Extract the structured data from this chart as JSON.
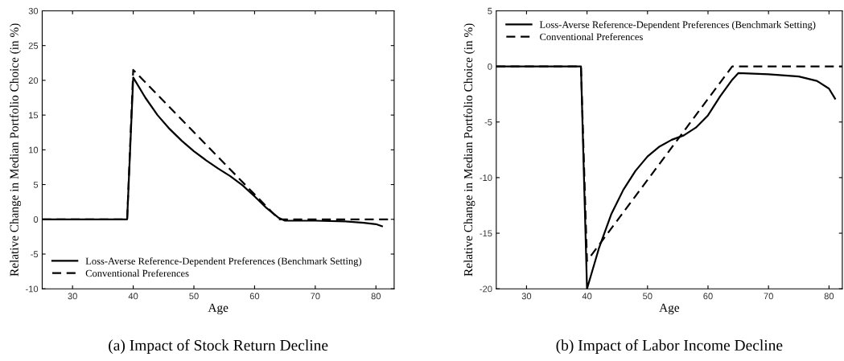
{
  "chart_data": [
    {
      "type": "line",
      "title": "(a) Impact of Stock Return Decline",
      "xlabel": "Age",
      "ylabel": "Relative Change in Median Portfolio Choice (in %)",
      "xlim": [
        25,
        83
      ],
      "xticks": [
        30,
        40,
        50,
        60,
        70,
        80
      ],
      "ylim": [
        -10,
        30
      ],
      "yticks": [
        -10,
        -5,
        0,
        5,
        10,
        15,
        20,
        25,
        30
      ],
      "legend": "bottom left",
      "grid": false,
      "series": [
        {
          "name": "Loss-Averse Reference-Dependent Preferences (Benchmark Setting)",
          "color": "#000000",
          "line_style": "solid",
          "x": [
            25,
            39,
            40,
            42,
            44,
            46,
            48,
            50,
            52,
            54,
            56,
            58,
            60,
            62,
            64,
            65,
            70,
            75,
            78,
            80,
            81
          ],
          "values": [
            0,
            0,
            20.4,
            17.5,
            15,
            13,
            11.3,
            9.8,
            8.5,
            7.3,
            6.2,
            4.9,
            3.3,
            1.6,
            0.2,
            -0.2,
            -0.2,
            -0.3,
            -0.5,
            -0.7,
            -1
          ]
        },
        {
          "name": "Conventional Preferences",
          "color": "#000000",
          "line_style": "dashed",
          "x": [
            25,
            39,
            40,
            64,
            83
          ],
          "values": [
            0,
            0,
            21.5,
            0,
            0
          ]
        }
      ]
    },
    {
      "type": "line",
      "title": "(b) Impact of Labor Income Decline",
      "xlabel": "Age",
      "ylabel": "Relative Change in Median Portfolio Choice (in %)",
      "xlim": [
        25,
        82.2
      ],
      "xticks": [
        30,
        40,
        50,
        60,
        70,
        80
      ],
      "ylim": [
        -20,
        5
      ],
      "yticks": [
        -20,
        -15,
        -10,
        -5,
        0,
        5
      ],
      "legend": "top left",
      "grid": false,
      "series": [
        {
          "name": "Loss-Averse Reference-Dependent Preferences (Benchmark Setting)",
          "color": "#000000",
          "line_style": "solid",
          "x": [
            25,
            39,
            40,
            42,
            44,
            46,
            48,
            50,
            52,
            54,
            56,
            58,
            60,
            62,
            64,
            65,
            70,
            75,
            78,
            80,
            81
          ],
          "values": [
            0,
            0,
            -20,
            -16.3,
            -13.3,
            -11.1,
            -9.4,
            -8.1,
            -7.2,
            -6.6,
            -6.2,
            -5.5,
            -4.4,
            -2.7,
            -1.2,
            -0.6,
            -0.7,
            -0.9,
            -1.3,
            -2.0,
            -2.9
          ]
        },
        {
          "name": "Conventional Preferences",
          "color": "#000000",
          "line_style": "dashed",
          "x": [
            25,
            39,
            40,
            64,
            82.2
          ],
          "values": [
            0,
            0,
            -17.5,
            0,
            0
          ]
        }
      ]
    }
  ]
}
